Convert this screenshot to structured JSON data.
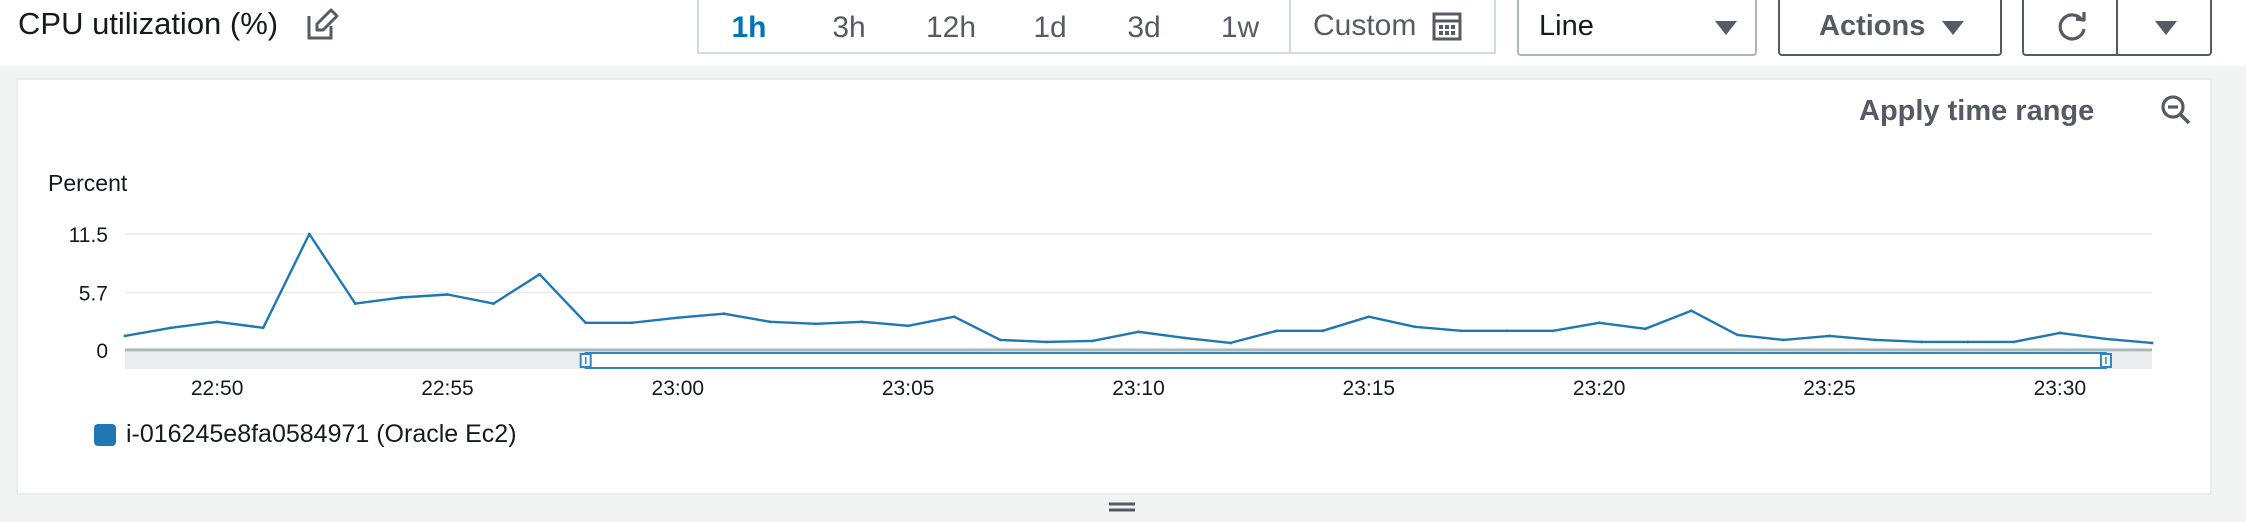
{
  "header": {
    "title": "CPU utilization (%)",
    "time_ranges": [
      "1h",
      "3h",
      "12h",
      "1d",
      "3d",
      "1w"
    ],
    "active_range": "1h",
    "custom_label": "Custom",
    "view_select": "Line",
    "actions_label": "Actions"
  },
  "panel": {
    "apply_label": "Apply time range"
  },
  "legend": {
    "label": "i-016245e8fa0584971 (Oracle Ec2)"
  },
  "colors": {
    "series": "#1f77b4",
    "accent": "#0073bb"
  },
  "icons": [
    "edit-icon",
    "calendar-icon",
    "caret-down-icon",
    "refresh-icon",
    "zoom-out-icon",
    "drag-handle-icon"
  ],
  "chart_data": {
    "type": "line",
    "ylabel": "Percent",
    "yticks": [
      0,
      5.7,
      11.5
    ],
    "ylim": [
      0,
      11.5
    ],
    "xticks": [
      "22:50",
      "22:55",
      "23:00",
      "23:05",
      "23:10",
      "23:15",
      "23:20",
      "23:25",
      "23:30"
    ],
    "xlim": [
      "22:48",
      "23:32"
    ],
    "grid": true,
    "legend_position": "bottom-left",
    "series": [
      {
        "name": "i-016245e8fa0584971 (Oracle Ec2)",
        "x": [
          "22:48",
          "22:49",
          "22:50",
          "22:51",
          "22:52",
          "22:53",
          "22:54",
          "22:55",
          "22:56",
          "22:57",
          "22:58",
          "22:59",
          "23:00",
          "23:01",
          "23:02",
          "23:03",
          "23:04",
          "23:05",
          "23:06",
          "23:07",
          "23:08",
          "23:09",
          "23:10",
          "23:11",
          "23:12",
          "23:13",
          "23:14",
          "23:15",
          "23:16",
          "23:17",
          "23:18",
          "23:19",
          "23:20",
          "23:21",
          "23:22",
          "23:23",
          "23:24",
          "23:25",
          "23:26",
          "23:27",
          "23:28",
          "23:29",
          "23:30",
          "23:31",
          "23:32"
        ],
        "values": [
          1.4,
          2.2,
          2.8,
          2.2,
          11.5,
          4.6,
          5.2,
          5.5,
          4.6,
          7.5,
          2.7,
          2.7,
          3.2,
          3.6,
          2.8,
          2.6,
          2.8,
          2.4,
          3.3,
          1.0,
          0.8,
          0.9,
          1.8,
          1.2,
          0.7,
          1.9,
          1.9,
          3.3,
          2.3,
          1.9,
          1.9,
          1.9,
          2.7,
          2.1,
          3.9,
          1.5,
          1.0,
          1.4,
          1.0,
          0.8,
          0.8,
          0.8,
          1.7,
          1.1,
          0.7
        ]
      }
    ],
    "brush_range": [
      "22:58",
      "23:31"
    ]
  }
}
